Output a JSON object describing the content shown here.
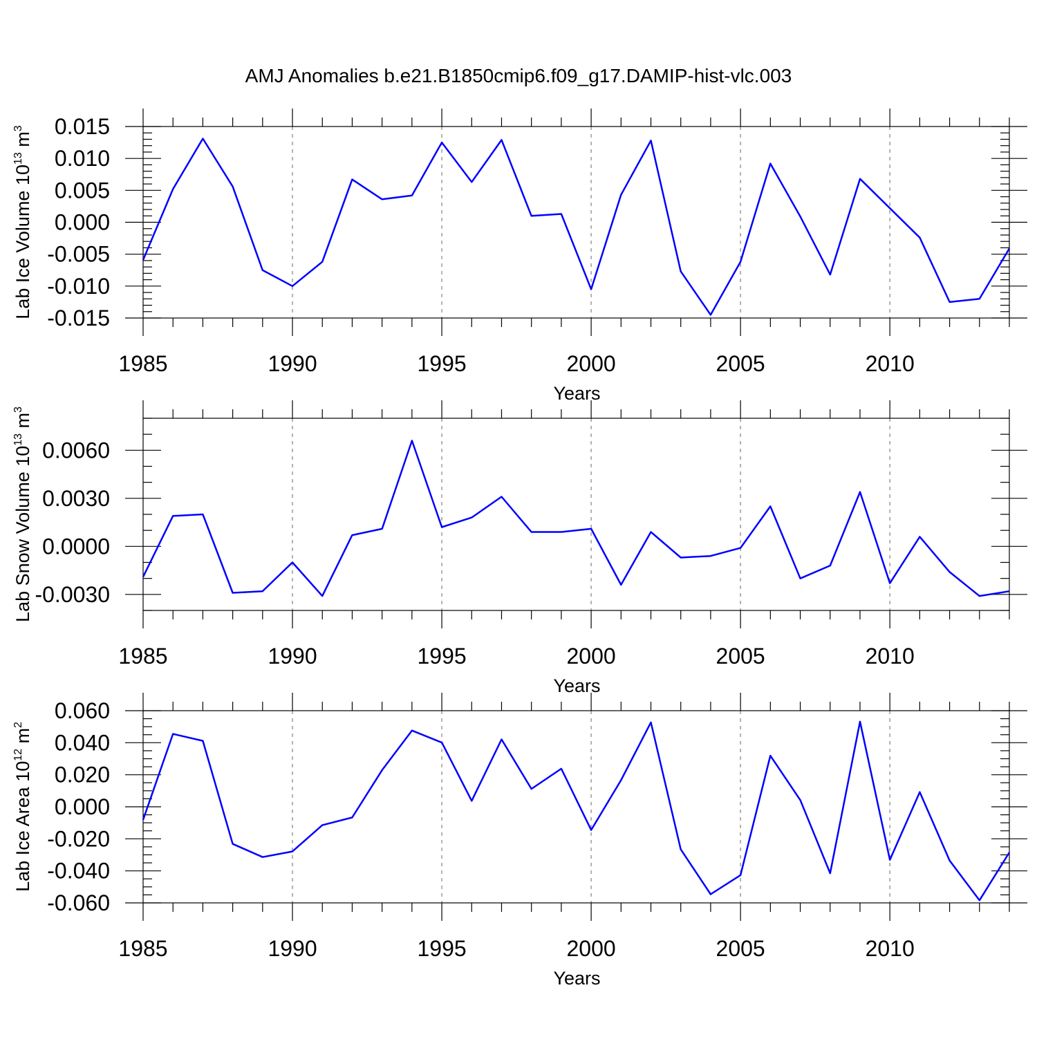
{
  "title": "AMJ Anomalies b.e21.B1850cmip6.f09_g17.DAMIP-hist-vlc.003",
  "chart_data": [
    {
      "type": "line",
      "name": "ice-volume",
      "xlabel": "Years",
      "ylabel": {
        "main": "Lab Ice Volume 10",
        "exp": "13",
        "unit": " m",
        "unit_exp": "3"
      },
      "xlim": [
        1985,
        2014
      ],
      "ylim": [
        -0.015,
        0.015
      ],
      "xticks": [
        1985,
        1990,
        1995,
        2000,
        2005,
        2010
      ],
      "xtick_labels": [
        "1985",
        "1990",
        "1995",
        "2000",
        "2005",
        "2010"
      ],
      "yticks": [
        -0.015,
        -0.01,
        -0.005,
        0,
        0.005,
        0.01,
        0.015
      ],
      "ytick_labels": [
        "-0.015",
        "-0.010",
        "-0.005",
        "0.000",
        "0.005",
        "0.010",
        "0.015"
      ],
      "yminor_step": 0.001,
      "grid_x": true,
      "x": [
        1985,
        1986,
        1987,
        1988,
        1989,
        1990,
        1991,
        1992,
        1993,
        1994,
        1995,
        1996,
        1997,
        1998,
        1999,
        2000,
        2001,
        2002,
        2003,
        2004,
        2005,
        2006,
        2007,
        2008,
        2009,
        2010,
        2011,
        2012,
        2013,
        2014
      ],
      "values": [
        -0.0059,
        0.0052,
        0.0131,
        0.0056,
        -0.0075,
        -0.01,
        -0.0062,
        0.0067,
        0.0036,
        0.0042,
        0.0125,
        0.0063,
        0.0129,
        0.001,
        0.0013,
        -0.0105,
        0.0043,
        0.0128,
        -0.0077,
        -0.0145,
        -0.0062,
        0.0092,
        0.0009,
        -0.0082,
        0.0068,
        0.0022,
        -0.0024,
        -0.0125,
        -0.012,
        -0.0041
      ],
      "color": "#0000ff"
    },
    {
      "type": "line",
      "name": "snow-volume",
      "xlabel": "Years",
      "ylabel": {
        "main": "Lab Snow Volume 10",
        "exp": "13",
        "unit": " m",
        "unit_exp": "3"
      },
      "xlim": [
        1985,
        2014
      ],
      "ylim": [
        -0.004,
        0.008
      ],
      "xticks": [
        1985,
        1990,
        1995,
        2000,
        2005,
        2010
      ],
      "xtick_labels": [
        "1985",
        "1990",
        "1995",
        "2000",
        "2005",
        "2010"
      ],
      "yticks": [
        -0.003,
        0,
        0.003,
        0.006
      ],
      "ytick_labels": [
        "-0.0030",
        "0.0000",
        "0.0030",
        "0.0060"
      ],
      "yminor_step": 0.001,
      "grid_x": true,
      "x": [
        1985,
        1986,
        1987,
        1988,
        1989,
        1990,
        1991,
        1992,
        1993,
        1994,
        1995,
        1996,
        1997,
        1998,
        1999,
        2000,
        2001,
        2002,
        2003,
        2004,
        2005,
        2006,
        2007,
        2008,
        2009,
        2010,
        2011,
        2012,
        2013,
        2014
      ],
      "values": [
        -0.0019,
        0.0019,
        0.002,
        -0.0029,
        -0.0028,
        -0.001,
        -0.0031,
        0.0007,
        0.0011,
        0.0066,
        0.0012,
        0.0018,
        0.0031,
        0.0009,
        0.0009,
        0.0011,
        -0.0024,
        0.0009,
        -0.0007,
        -0.0006,
        -0.0001,
        0.0025,
        -0.002,
        -0.0012,
        0.0034,
        -0.0023,
        0.0006,
        -0.0016,
        -0.0031,
        -0.0028
      ],
      "color": "#0000ff"
    },
    {
      "type": "line",
      "name": "ice-area",
      "xlabel": "Years",
      "ylabel": {
        "main": "Lab Ice Area 10",
        "exp": "12",
        "unit": " m",
        "unit_exp": "2"
      },
      "xlim": [
        1985,
        2014
      ],
      "ylim": [
        -0.06,
        0.06
      ],
      "xticks": [
        1985,
        1990,
        1995,
        2000,
        2005,
        2010
      ],
      "xtick_labels": [
        "1985",
        "1990",
        "1995",
        "2000",
        "2005",
        "2010"
      ],
      "yticks": [
        -0.06,
        -0.04,
        -0.02,
        0,
        0.02,
        0.04,
        0.06
      ],
      "ytick_labels": [
        "-0.060",
        "-0.040",
        "-0.020",
        "0.000",
        "0.020",
        "0.040",
        "0.060"
      ],
      "yminor_step": 0.005,
      "grid_x": true,
      "x": [
        1985,
        1986,
        1987,
        1988,
        1989,
        1990,
        1991,
        1992,
        1993,
        1994,
        1995,
        1996,
        1997,
        1998,
        1999,
        2000,
        2001,
        2002,
        2003,
        2004,
        2005,
        2006,
        2007,
        2008,
        2009,
        2010,
        2011,
        2012,
        2013,
        2014
      ],
      "values": [
        -0.0081,
        0.0455,
        0.0412,
        -0.0232,
        -0.0314,
        -0.0279,
        -0.0115,
        -0.0067,
        0.0229,
        0.0476,
        0.0401,
        0.0037,
        0.0421,
        0.0112,
        0.0238,
        -0.0145,
        0.0166,
        0.0527,
        -0.0266,
        -0.0546,
        -0.0427,
        0.0319,
        0.0042,
        -0.0415,
        0.0532,
        -0.0331,
        0.0092,
        -0.0336,
        -0.0584,
        -0.0285
      ],
      "color": "#0000ff"
    }
  ]
}
